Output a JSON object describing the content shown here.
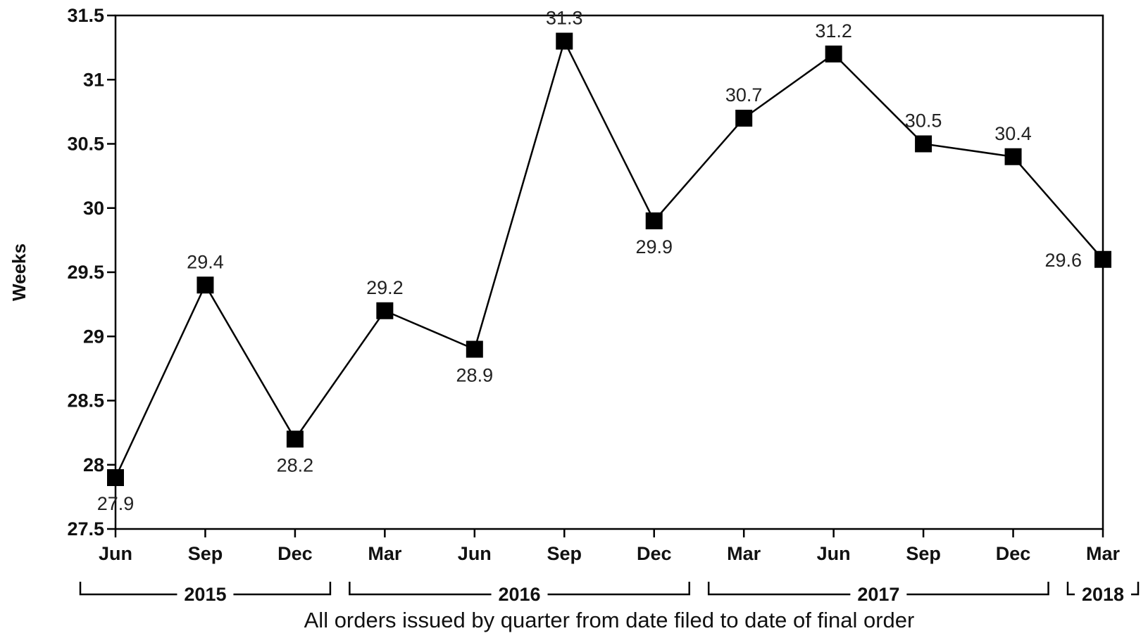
{
  "chart_data": {
    "type": "line",
    "title": "",
    "ylabel": "Weeks",
    "xlabel": "All orders issued by quarter from date filed to date of final order",
    "ylim": [
      27.5,
      31.5
    ],
    "yticks": [
      "27.5",
      "28",
      "28.5",
      "29",
      "29.5",
      "30",
      "30.5",
      "31",
      "31.5"
    ],
    "categories": [
      "Jun",
      "Sep",
      "Dec",
      "Mar",
      "Jun",
      "Sep",
      "Dec",
      "Mar",
      "Jun",
      "Sep",
      "Dec",
      "Mar"
    ],
    "years": [
      {
        "label": "2015",
        "start": 0,
        "end": 2
      },
      {
        "label": "2016",
        "start": 3,
        "end": 6
      },
      {
        "label": "2017",
        "start": 7,
        "end": 10
      },
      {
        "label": "2018",
        "start": 11,
        "end": 11
      }
    ],
    "series": [
      {
        "values": [
          27.9,
          29.4,
          28.2,
          29.2,
          28.9,
          31.3,
          29.9,
          30.7,
          31.2,
          30.5,
          30.4,
          29.6
        ],
        "labels": [
          "27.9",
          "29.4",
          "28.2",
          "29.2",
          "28.9",
          "31.3",
          "29.9",
          "30.7",
          "31.2",
          "30.5",
          "30.4",
          "29.6"
        ],
        "color": "#000000",
        "marker": "square"
      }
    ],
    "grid": false,
    "legend": "none"
  }
}
